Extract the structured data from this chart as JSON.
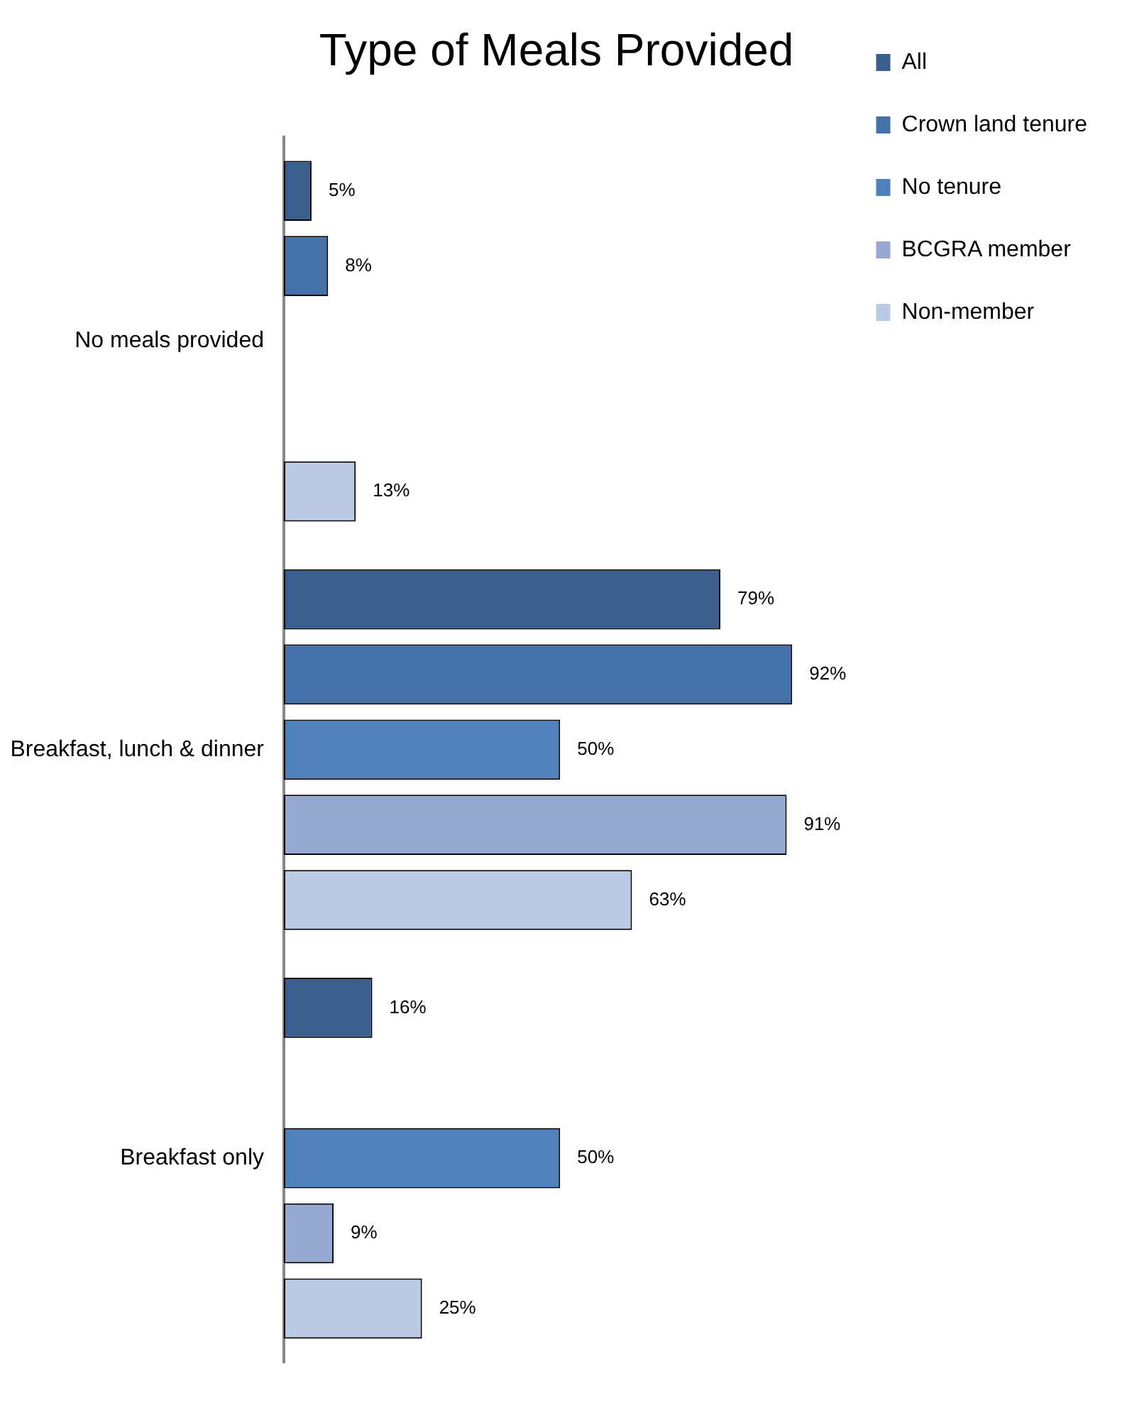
{
  "chart_data": {
    "type": "bar",
    "orientation": "horizontal",
    "title": "Type of Meals Provided",
    "categories": [
      "No meals provided",
      "Breakfast, lunch & dinner",
      "Breakfast only"
    ],
    "series": [
      {
        "name": "All",
        "color": "#3a5f8f",
        "values": [
          5,
          79,
          16
        ],
        "value_labels": [
          "5%",
          "79%",
          "16%"
        ]
      },
      {
        "name": "Crown land tenure",
        "color": "#4472a8",
        "values": [
          8,
          92,
          null
        ],
        "value_labels": [
          "8%",
          "92%",
          null
        ]
      },
      {
        "name": "No tenure",
        "color": "#4f81bd",
        "values": [
          null,
          50,
          50
        ],
        "value_labels": [
          null,
          "50%",
          "50%"
        ]
      },
      {
        "name": "BCGRA member",
        "color": "#95a9d1",
        "values": [
          null,
          91,
          9
        ],
        "value_labels": [
          null,
          "91%",
          "9%"
        ]
      },
      {
        "name": "Non-member",
        "color": "#bccbe4",
        "values": [
          13,
          63,
          25
        ],
        "value_labels": [
          "13%",
          "63%",
          "25%"
        ]
      }
    ],
    "legend": "top right",
    "grid": false
  }
}
